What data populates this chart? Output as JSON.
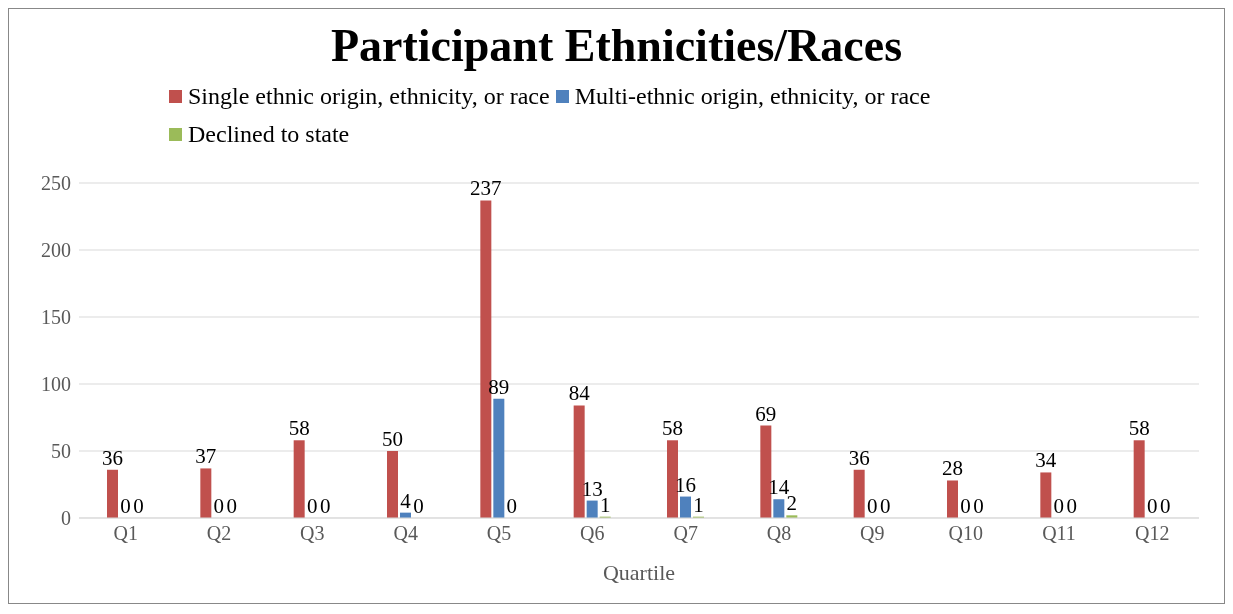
{
  "chart_data": {
    "type": "bar",
    "title": "Participant Ethnicities/Races",
    "xlabel": "Quartile",
    "categories": [
      "Q1",
      "Q2",
      "Q3",
      "Q4",
      "Q5",
      "Q6",
      "Q7",
      "Q8",
      "Q9",
      "Q10",
      "Q11",
      "Q12"
    ],
    "series": [
      {
        "name": "Single ethnic origin, ethnicity, or race",
        "color": "#c0504d",
        "values": [
          36,
          37,
          58,
          50,
          237,
          84,
          58,
          69,
          36,
          28,
          34,
          58
        ]
      },
      {
        "name": "Multi-ethnic origin, ethnicity, or race",
        "color": "#4f81bd",
        "values": [
          0,
          0,
          0,
          4,
          89,
          13,
          16,
          14,
          0,
          0,
          0,
          0
        ]
      },
      {
        "name": "Declined to state",
        "color": "#9bbb59",
        "values": [
          0,
          0,
          0,
          0,
          0,
          1,
          1,
          2,
          0,
          0,
          0,
          0
        ]
      }
    ],
    "ylim": [
      0,
      250
    ],
    "yticks": [
      0,
      50,
      100,
      150,
      200,
      250
    ],
    "grid": "y",
    "legend": "top",
    "data_labels": true
  }
}
